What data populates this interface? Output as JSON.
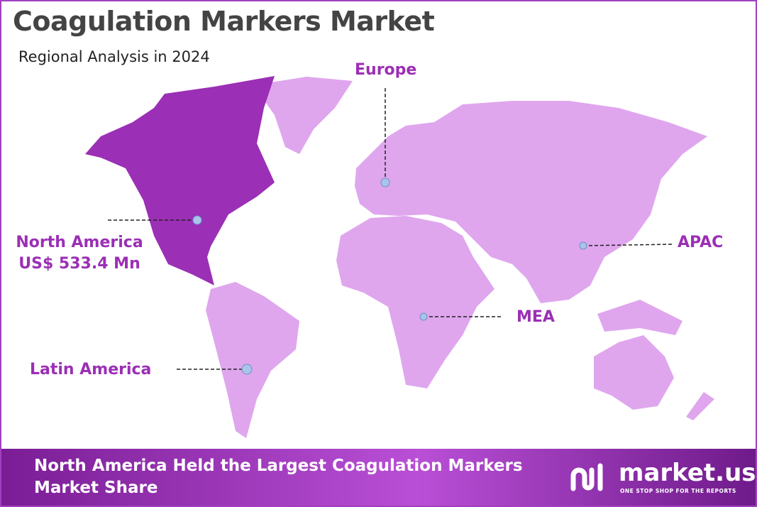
{
  "header": {
    "title": "Coagulation Markers Market",
    "subtitle": "Regional Analysis in 2024"
  },
  "regions": [
    {
      "name": "North America",
      "value": "US$ 533.4 Mn"
    },
    {
      "name": "Europe"
    },
    {
      "name": "APAC"
    },
    {
      "name": "MEA"
    },
    {
      "name": "Latin America"
    }
  ],
  "footer": {
    "text": "North America Held the Largest Coagulation Markers Market Share",
    "brand": "market.us",
    "tagline": "ONE STOP SHOP FOR THE REPORTS"
  }
}
